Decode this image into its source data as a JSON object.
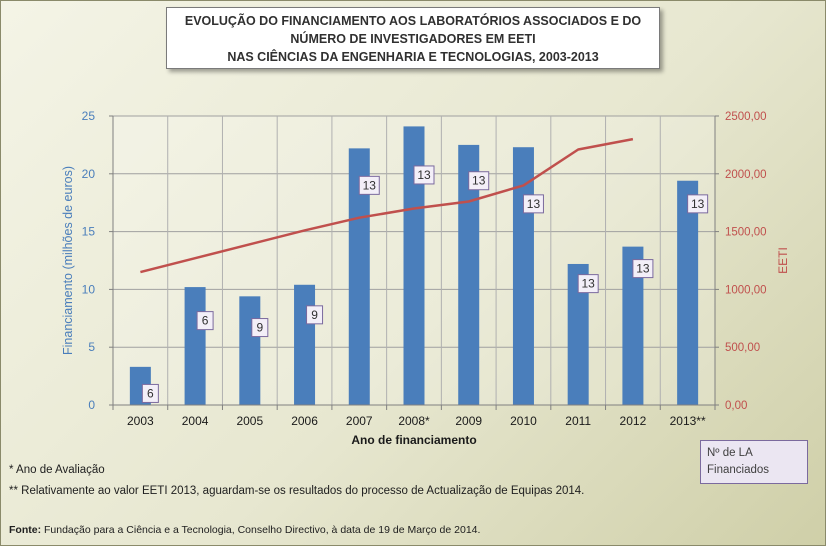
{
  "title_lines": [
    "EVOLUÇÃO DO FINANCIAMENTO AOS LABORATÓRIOS ASSOCIADOS E DO",
    "NÚMERO DE INVESTIGADORES EM EETI",
    "NAS CIÊNCIAS DA ENGENHARIA E TECNOLOGIAS, 2003-2013"
  ],
  "notes": {
    "note1": "* Ano de Avaliação",
    "note2": "** Relativamente ao valor EETI 2013, aguardam-se os resultados do processo de Actualização de Equipas 2014."
  },
  "legend_box": {
    "line1": "Nº de LA",
    "line2": "Financiados"
  },
  "source": {
    "label": "Fonte:",
    "text": " Fundação para a Ciência e a Tecnologia, Conselho Directivo, à data de 19 de Março de 2014."
  },
  "colors": {
    "bar": "#4a7ebb",
    "line": "#c0504d",
    "left_axis_text": "#4a7ebb",
    "right_axis_text": "#c0504d",
    "label_box_border": "#7b6a9e",
    "label_box_fill": "#f3eff8"
  },
  "chart_data": {
    "type": "bar",
    "categories": [
      "2003",
      "2004",
      "2005",
      "2006",
      "2007",
      "2008*",
      "2009",
      "2010",
      "2011",
      "2012",
      "2013**"
    ],
    "xlabel": "Ano de financiamento",
    "ylabel": "Financiamento (milhões de euros)",
    "y2label": "EETI",
    "ylim": [
      0,
      25
    ],
    "y2lim": [
      0,
      2500
    ],
    "yticks": [
      "0",
      "5",
      "10",
      "15",
      "20",
      "25"
    ],
    "y2ticks": [
      "0,00",
      "500,00",
      "1000,00",
      "1500,00",
      "2000,00",
      "2500,00"
    ],
    "grid": true,
    "series": [
      {
        "type": "bar",
        "axis": "left",
        "values": [
          3.3,
          10.2,
          9.4,
          10.4,
          22.2,
          24.1,
          22.5,
          22.3,
          12.2,
          13.7,
          19.4
        ],
        "point_labels": [
          "6",
          "6",
          "9",
          "9",
          "13",
          "13",
          "13",
          "13",
          "13",
          "13",
          "13"
        ],
        "label_values": [
          1.0,
          7.3,
          6.7,
          7.8,
          19.0,
          19.9,
          19.4,
          17.4,
          10.5,
          11.8,
          17.4
        ]
      },
      {
        "type": "line",
        "axis": "right",
        "values": [
          1150,
          1270,
          1390,
          1510,
          1620,
          1700,
          1760,
          1900,
          2210,
          2300,
          null
        ]
      }
    ]
  }
}
